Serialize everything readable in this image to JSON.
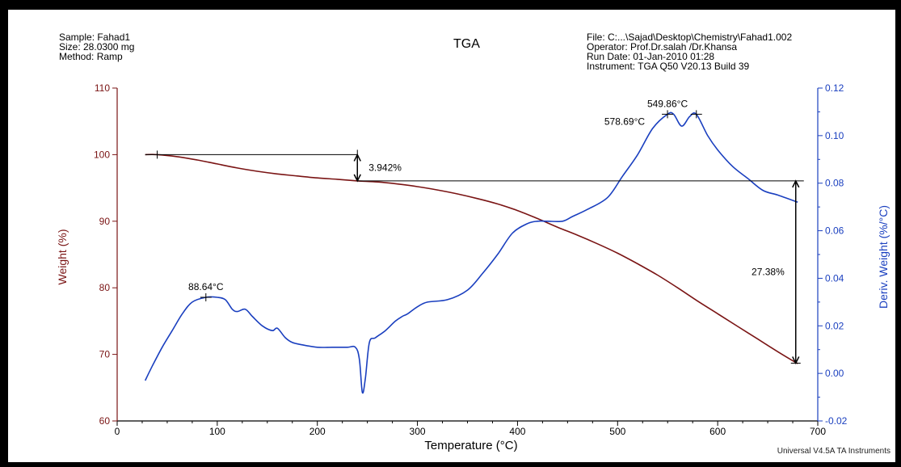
{
  "header": {
    "sample_line": "Sample: Fahad1",
    "size_line": "Size:  28.0300 mg",
    "method_line": "Method: Ramp",
    "title": "TGA",
    "file_line": "File: C:...\\Sajad\\Desktop\\Chemistry\\Fahad1.002",
    "operator_line": "Operator: Prof.Dr.salah /Dr.Khansa",
    "rundate_line": "Run Date: 01-Jan-2010 01:28",
    "instrument_line": "Instrument: TGA Q50 V20.13 Build 39"
  },
  "footer": "Universal V4.5A TA Instruments",
  "colors": {
    "weight": "#7a1414",
    "deriv": "#1a3fbf",
    "axis_black": "#000000"
  },
  "chart_data": {
    "type": "line",
    "title": "TGA",
    "xlabel": "Temperature (°C)",
    "ylabel_left": "Weight (%)",
    "ylabel_right": "Deriv. Weight (%/°C)",
    "xlim": [
      0,
      700
    ],
    "ylim_left": [
      60,
      110
    ],
    "ylim_right": [
      -0.02,
      0.12
    ],
    "x_ticks": [
      "0",
      "100",
      "200",
      "300",
      "400",
      "500",
      "600",
      "700"
    ],
    "y_ticks_left": [
      "60",
      "70",
      "80",
      "90",
      "100",
      "110"
    ],
    "y_ticks_right": [
      "-0.02",
      "0.00",
      "0.02",
      "0.04",
      "0.06",
      "0.08",
      "0.10",
      "0.12"
    ],
    "series": [
      {
        "name": "Weight (%)",
        "axis": "left",
        "color": "#7a1414",
        "x": [
          28,
          40,
          60,
          80,
          100,
          120,
          140,
          160,
          180,
          200,
          220,
          240,
          260,
          280,
          300,
          320,
          340,
          360,
          380,
          400,
          420,
          440,
          460,
          480,
          500,
          520,
          540,
          560,
          580,
          600,
          620,
          640,
          660,
          680
        ],
        "y": [
          100.0,
          100.0,
          99.7,
          99.2,
          98.6,
          98.0,
          97.5,
          97.1,
          96.8,
          96.5,
          96.3,
          96.06,
          95.9,
          95.6,
          95.2,
          94.7,
          94.1,
          93.4,
          92.6,
          91.6,
          90.4,
          89.1,
          87.9,
          86.6,
          85.2,
          83.6,
          81.9,
          80.0,
          78.0,
          76.1,
          74.2,
          72.3,
          70.4,
          68.6
        ]
      },
      {
        "name": "Deriv. Weight (%/°C)",
        "axis": "right",
        "color": "#1a3fbf",
        "x": [
          28,
          35,
          45,
          55,
          65,
          75,
          88.64,
          100,
          108,
          115,
          120,
          128,
          135,
          145,
          155,
          160,
          168,
          175,
          185,
          200,
          215,
          230,
          238,
          242,
          245,
          248,
          252,
          258,
          268,
          278,
          285,
          290,
          300,
          310,
          330,
          350,
          365,
          380,
          395,
          410,
          420,
          430,
          445,
          455,
          470,
          490,
          505,
          520,
          535,
          549.86,
          556,
          564,
          572,
          578.69,
          590,
          600,
          615,
          630,
          645,
          660,
          680
        ],
        "y": [
          -0.003,
          0.003,
          0.011,
          0.018,
          0.025,
          0.03,
          0.032,
          0.032,
          0.031,
          0.027,
          0.026,
          0.027,
          0.024,
          0.02,
          0.018,
          0.019,
          0.015,
          0.013,
          0.012,
          0.011,
          0.011,
          0.011,
          0.011,
          0.006,
          -0.008,
          -0.002,
          0.013,
          0.015,
          0.018,
          0.022,
          0.024,
          0.025,
          0.028,
          0.03,
          0.031,
          0.035,
          0.042,
          0.05,
          0.059,
          0.063,
          0.064,
          0.064,
          0.064,
          0.066,
          0.069,
          0.074,
          0.083,
          0.092,
          0.103,
          0.109,
          0.109,
          0.104,
          0.108,
          0.109,
          0.1,
          0.094,
          0.087,
          0.082,
          0.077,
          0.075,
          0.072
        ]
      }
    ],
    "annotations": [
      {
        "text": "549.86°C",
        "x": 549.86,
        "y": 0.109,
        "axis": "right"
      },
      {
        "text": "578.69°C",
        "x": 578.69,
        "y": 0.109,
        "axis": "right"
      },
      {
        "text": "88.64°C",
        "x": 88.64,
        "y": 0.032,
        "axis": "right"
      },
      {
        "text": "3.942%",
        "x_from": 40,
        "x_to": 240,
        "y_top": 100.0,
        "y_bottom": 96.06,
        "axis": "left"
      },
      {
        "text": "27.38%",
        "x": 678,
        "y_top": 96.06,
        "y_bottom": 68.68,
        "axis": "left"
      }
    ]
  }
}
